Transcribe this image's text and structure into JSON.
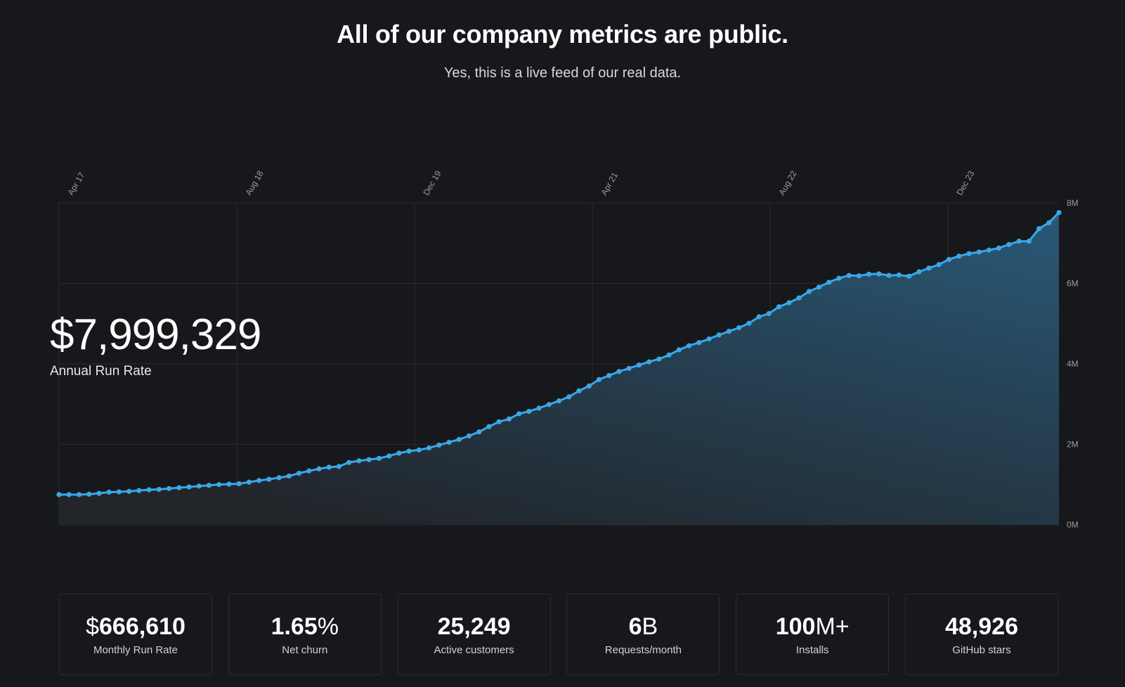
{
  "header": {
    "title": "All of our company metrics are public.",
    "subtitle": "Yes, this is a live feed of our real data."
  },
  "headline_stat": {
    "currency": "$",
    "value": "7,999,329",
    "label": "Annual Run Rate"
  },
  "cards": [
    {
      "prefix": "$",
      "value": "666,610",
      "suffix": "",
      "label": "Monthly Run Rate"
    },
    {
      "prefix": "",
      "value": "1.65",
      "suffix": "%",
      "label": "Net churn"
    },
    {
      "prefix": "",
      "value": "25,249",
      "suffix": "",
      "label": "Active customers"
    },
    {
      "prefix": "",
      "value": "6",
      "suffix": "B",
      "label": "Requests/month"
    },
    {
      "prefix": "",
      "value": "100",
      "suffix": "M+",
      "label": "Installs"
    },
    {
      "prefix": "",
      "value": "48,926",
      "suffix": "",
      "label": "GitHub stars"
    }
  ],
  "colors": {
    "background": "#17181c",
    "line": "#3aa7e6",
    "area_top": "#2a5c7c",
    "area_bottom": "#22262b",
    "grid": "#2a2c31"
  },
  "chart_data": {
    "type": "area",
    "title": "",
    "xlabel": "",
    "ylabel": "",
    "x_start": "2017-04",
    "x_end": "2024-10",
    "x_ticks": [
      "Apr 17",
      "Aug 18",
      "Dec 19",
      "Apr 21",
      "Aug 22",
      "Dec 23"
    ],
    "x_tick_dates": [
      "2017-04",
      "2018-08",
      "2019-12",
      "2021-04",
      "2022-08",
      "2023-12"
    ],
    "y_ticks": [
      "0M",
      "2M",
      "4M",
      "6M",
      "8M"
    ],
    "y_tick_values": [
      0,
      2000000,
      4000000,
      6000000,
      8000000
    ],
    "ylim": [
      0,
      8000000
    ],
    "grid": true,
    "series": [
      {
        "values": [
          0.75,
          0.75,
          0.75,
          0.76,
          0.78,
          0.81,
          0.82,
          0.83,
          0.85,
          0.87,
          0.88,
          0.9,
          0.92,
          0.94,
          0.96,
          0.98,
          1.0,
          1.01,
          1.02,
          1.06,
          1.1,
          1.13,
          1.17,
          1.21,
          1.28,
          1.34,
          1.39,
          1.43,
          1.45,
          1.55,
          1.59,
          1.62,
          1.65,
          1.71,
          1.78,
          1.83,
          1.86,
          1.91,
          1.98,
          2.05,
          2.12,
          2.21,
          2.31,
          2.44,
          2.56,
          2.63,
          2.76,
          2.82,
          2.9,
          2.99,
          3.08,
          3.18,
          3.33,
          3.45,
          3.61,
          3.71,
          3.81,
          3.89,
          3.97,
          4.05,
          4.12,
          4.22,
          4.35,
          4.45,
          4.53,
          4.62,
          4.72,
          4.81,
          4.9,
          5.01,
          5.17,
          5.25,
          5.42,
          5.52,
          5.64,
          5.8,
          5.91,
          6.03,
          6.13,
          6.2,
          6.19,
          6.23,
          6.24,
          6.2,
          6.21,
          6.18,
          6.29,
          6.38,
          6.47,
          6.6,
          6.68,
          6.74,
          6.78,
          6.83,
          6.88,
          6.97,
          7.05,
          7.05,
          7.36,
          7.51,
          7.76
        ]
      }
    ]
  }
}
